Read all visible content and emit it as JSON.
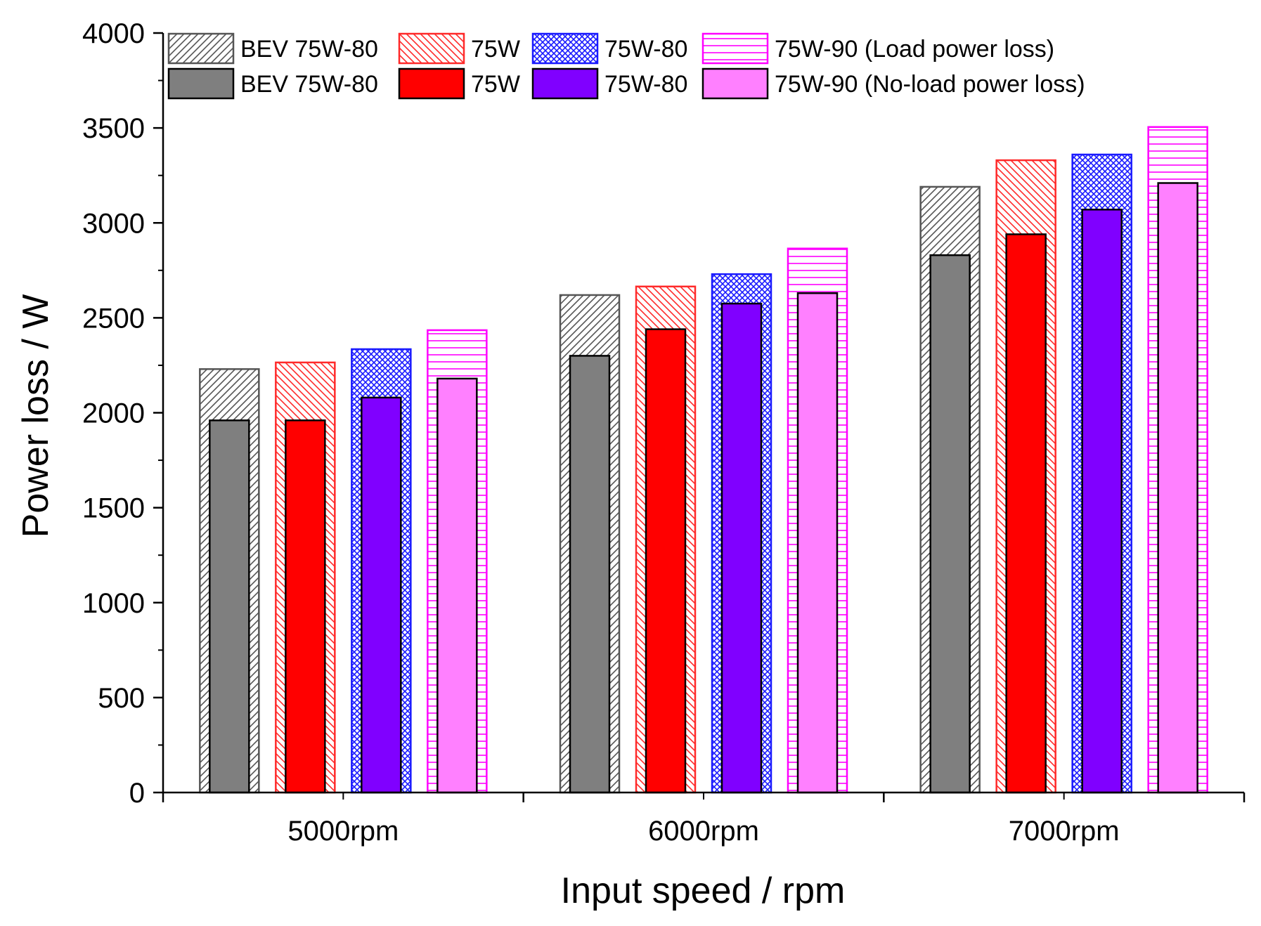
{
  "chart_data": {
    "type": "bar",
    "categories": [
      "5000rpm",
      "6000rpm",
      "7000rpm"
    ],
    "xlabel": "Input speed / rpm",
    "ylabel": "Power loss / W",
    "ylim": [
      0,
      4000
    ],
    "yticks": [
      0,
      500,
      1000,
      1500,
      2000,
      2500,
      3000,
      3500,
      4000
    ],
    "grid": false,
    "legend_position": "top",
    "legend_columns": 4,
    "oils": [
      {
        "load_label": "BEV 75W-80",
        "noload_label": "BEV 75W-80",
        "color": "#555555",
        "fill_color": "#7f7f7f",
        "pattern": "diagonal-up",
        "load_values": [
          2230,
          2620,
          3190
        ],
        "noload_values": [
          1960,
          2300,
          2830
        ]
      },
      {
        "load_label": "75W",
        "noload_label": "75W",
        "color": "#ff2a2a",
        "fill_color": "#ff0000",
        "pattern": "diagonal-down",
        "load_values": [
          2265,
          2665,
          3330
        ],
        "noload_values": [
          1960,
          2440,
          2940
        ]
      },
      {
        "load_label": "75W-80",
        "noload_label": "75W-80",
        "color": "#1a1aff",
        "fill_color": "#8000ff",
        "pattern": "crosshatch",
        "load_values": [
          2335,
          2730,
          3360
        ],
        "noload_values": [
          2080,
          2575,
          3070
        ]
      },
      {
        "load_label": "75W-90 (Load power loss)",
        "noload_label": "75W-90 (No-load power loss)",
        "color": "#ff00ff",
        "fill_color": "#ff80ff",
        "pattern": "horizontal",
        "load_values": [
          2435,
          2865,
          3505
        ],
        "noload_values": [
          2180,
          2630,
          3210
        ]
      }
    ]
  }
}
